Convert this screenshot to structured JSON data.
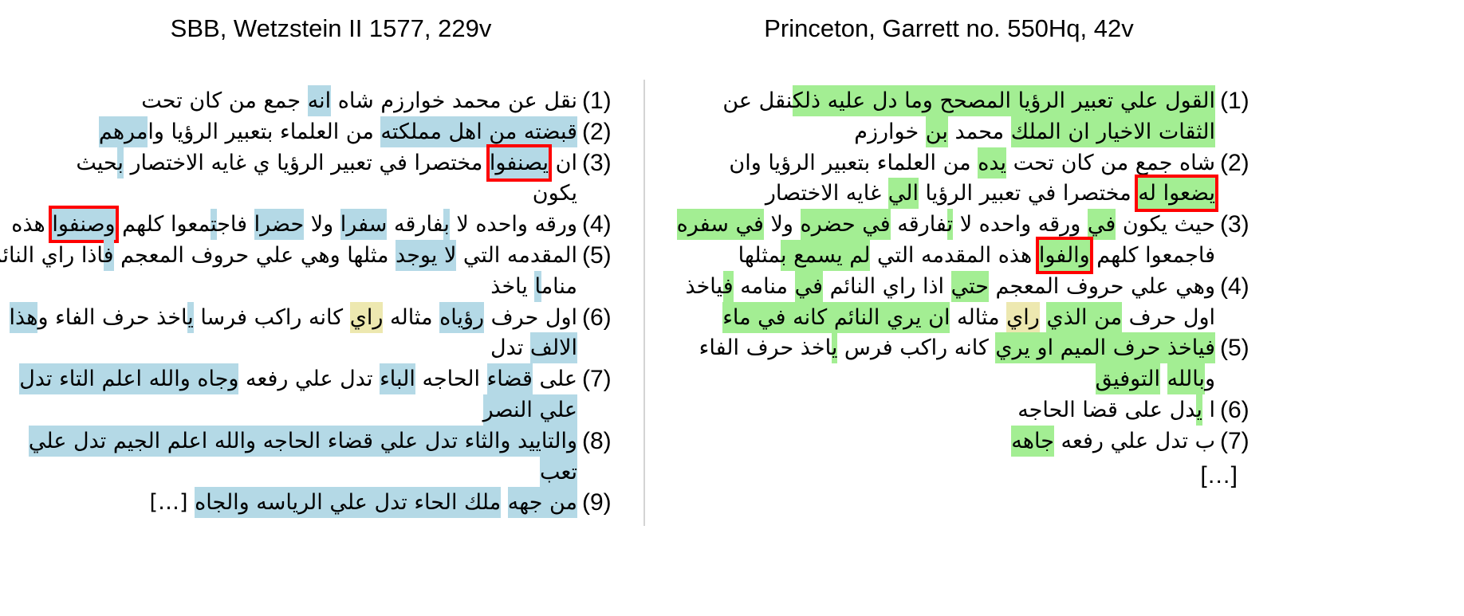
{
  "colors": {
    "blue": "#b4d9e6",
    "green": "#a3ee93",
    "yellow": "#ede8b0",
    "box": "#ff0000"
  },
  "left": {
    "title": "SBB, Wetzstein II 1577, 229v",
    "lines": [
      {
        "num": "(1)",
        "segs": [
          [
            "نقل عن محمد خوارزم شاه ",
            ""
          ],
          [
            "انه",
            "blue"
          ],
          [
            " جمع من كان تحت",
            ""
          ]
        ]
      },
      {
        "num": "(2)",
        "segs": [
          [
            "قبضته من اهل مملكته",
            "blue"
          ],
          [
            " من العلماء بتعبير الرؤيا وا",
            ""
          ],
          [
            "مرهم",
            "blue"
          ]
        ]
      },
      {
        "num": "(3)",
        "segs": [
          [
            "ان ",
            ""
          ],
          [
            "يصنفوا",
            "blue",
            "box"
          ],
          [
            " مختصرا في تعبير الرؤيا ي غايه الاختصار ",
            ""
          ],
          [
            "ب",
            "blue"
          ],
          [
            "حيث",
            ""
          ]
        ]
      },
      {
        "num": "",
        "segs": [
          [
            "يكون",
            ""
          ]
        ]
      },
      {
        "num": "(4)",
        "segs": [
          [
            "ورقه واحده لا ",
            ""
          ],
          [
            "ب",
            "blue"
          ],
          [
            "فارقه ",
            ""
          ],
          [
            "سفرا",
            "blue"
          ],
          [
            " ولا ",
            ""
          ],
          [
            "حضرا",
            "blue"
          ],
          [
            " فاج",
            ""
          ],
          [
            "ت",
            "blue"
          ],
          [
            "معوا كلهم ",
            ""
          ],
          [
            "وصنفوا",
            "blue",
            "box"
          ],
          [
            " هذه",
            ""
          ]
        ]
      },
      {
        "num": "(5)",
        "segs": [
          [
            "المقدمه التي ",
            ""
          ],
          [
            "لا يوجد",
            "blue"
          ],
          [
            " مثلها وهي علي حروف المعجم ",
            ""
          ],
          [
            "ف",
            "blue"
          ],
          [
            "اذا راي النائم",
            ""
          ]
        ]
      },
      {
        "num": "",
        "segs": [
          [
            "منام",
            ""
          ],
          [
            "ا",
            "blue"
          ],
          [
            " ياخذ",
            ""
          ]
        ]
      },
      {
        "num": "(6)",
        "segs": [
          [
            "اول حرف ",
            ""
          ],
          [
            "رؤياه",
            "blue"
          ],
          [
            " مثاله ",
            ""
          ],
          [
            "راي",
            "yellow"
          ],
          [
            " كانه راكب فرسا ",
            ""
          ],
          [
            "ي",
            "blue"
          ],
          [
            "اخذ حرف الفاء و",
            ""
          ],
          [
            "هذا",
            "blue"
          ]
        ]
      },
      {
        "num": "",
        "segs": [
          [
            "الالف",
            "blue"
          ],
          [
            " تدل",
            ""
          ]
        ]
      },
      {
        "num": "(7)",
        "segs": [
          [
            "على ",
            ""
          ],
          [
            "قضاء",
            "blue"
          ],
          [
            " الحاجه ",
            ""
          ],
          [
            "الباء",
            "blue"
          ],
          [
            " تدل علي رفعه ",
            ""
          ],
          [
            "وجاه والله اعلم التاء تدل",
            "blue"
          ]
        ]
      },
      {
        "num": "",
        "segs": [
          [
            "علي النصر",
            "blue"
          ]
        ]
      },
      {
        "num": "(8)",
        "segs": [
          [
            "والتاييد والثاء تدل علي قضاء الحاجه والله اعلم الجيم تدل علي",
            "blue"
          ]
        ]
      },
      {
        "num": "",
        "segs": [
          [
            "تعب",
            "blue"
          ]
        ]
      },
      {
        "num": "(9)",
        "segs": [
          [
            "من جهه",
            "blue"
          ],
          [
            " ",
            ""
          ],
          [
            "ملك الحاء تدل علي الرياسه والجاه",
            "blue"
          ],
          [
            " […]",
            ""
          ]
        ]
      }
    ]
  },
  "right": {
    "title": "Princeton, Garrett no. 550Hq, 42v",
    "lines": [
      {
        "num": "(1)",
        "segs": [
          [
            "القول علي تعبير الرؤيا المصحح وما دل عليه ذلك",
            "green"
          ],
          [
            "نقل عن",
            ""
          ]
        ]
      },
      {
        "num": "",
        "segs": [
          [
            "الثقات الاخيار ان الملك",
            "green"
          ],
          [
            " محمد ",
            ""
          ],
          [
            "بن",
            "green"
          ],
          [
            " خوارزم",
            ""
          ]
        ]
      },
      {
        "num": "(2)",
        "segs": [
          [
            "شاه جمع من كان تحت ",
            ""
          ],
          [
            "يده",
            "green"
          ],
          [
            " من العلماء بتعبير الرؤيا وان",
            ""
          ]
        ]
      },
      {
        "num": "",
        "segs": [
          [
            "يضعوا له",
            "green",
            "box"
          ],
          [
            " مختصرا في تعبير الرؤيا ",
            ""
          ],
          [
            "الي",
            "green"
          ],
          [
            " غايه الاختصار",
            ""
          ]
        ]
      },
      {
        "num": "(3)",
        "segs": [
          [
            "حيث يكون ",
            ""
          ],
          [
            "في",
            "green"
          ],
          [
            " ورقه واحده لا ",
            ""
          ],
          [
            "ت",
            "green"
          ],
          [
            "فارقه ",
            ""
          ],
          [
            "في حضره",
            "green"
          ],
          [
            " ولا ",
            ""
          ],
          [
            "في سفره",
            "green"
          ]
        ]
      },
      {
        "num": "",
        "segs": [
          [
            "فاجمعوا كلهم ",
            ""
          ],
          [
            "والفوا",
            "green",
            "box"
          ],
          [
            " هذه المقدمه التي ",
            ""
          ],
          [
            "لم يسمع ب",
            "green"
          ],
          [
            "مثلها",
            ""
          ]
        ]
      },
      {
        "num": "(4)",
        "segs": [
          [
            "وهي علي حروف المعجم ",
            ""
          ],
          [
            "حتي",
            "green"
          ],
          [
            " اذا راي النائم ",
            ""
          ],
          [
            "في",
            "green"
          ],
          [
            " منامه ",
            ""
          ],
          [
            "ف",
            "green"
          ],
          [
            "ياخذ",
            ""
          ]
        ]
      },
      {
        "num": "",
        "segs": [
          [
            "اول حرف ",
            ""
          ],
          [
            "من الذي",
            "green"
          ],
          [
            " ",
            ""
          ],
          [
            "راي",
            "yellow"
          ],
          [
            " مثاله ",
            ""
          ],
          [
            "ان يري النائم كانه في ماء",
            "green"
          ]
        ]
      },
      {
        "num": "(5)",
        "segs": [
          [
            "فياخذ حرف الميم او يري",
            "green"
          ],
          [
            " كانه راكب فرس ",
            ""
          ],
          [
            "ي",
            "green"
          ],
          [
            "اخذ حرف الفاء",
            ""
          ]
        ]
      },
      {
        "num": "",
        "segs": [
          [
            "و",
            ""
          ],
          [
            "بالله",
            "green"
          ],
          [
            " ",
            ""
          ],
          [
            "التوفيق",
            "green"
          ]
        ]
      },
      {
        "num": "(6)",
        "segs": [
          [
            "ا ",
            ""
          ],
          [
            "ي",
            "green"
          ],
          [
            "دل على قضا الحاجه",
            ""
          ]
        ]
      },
      {
        "num": "(7)",
        "segs": [
          [
            "ب تدل علي رفعه ",
            ""
          ],
          [
            "جاهه",
            "green"
          ]
        ]
      }
    ],
    "ellipsis": "[…]"
  }
}
